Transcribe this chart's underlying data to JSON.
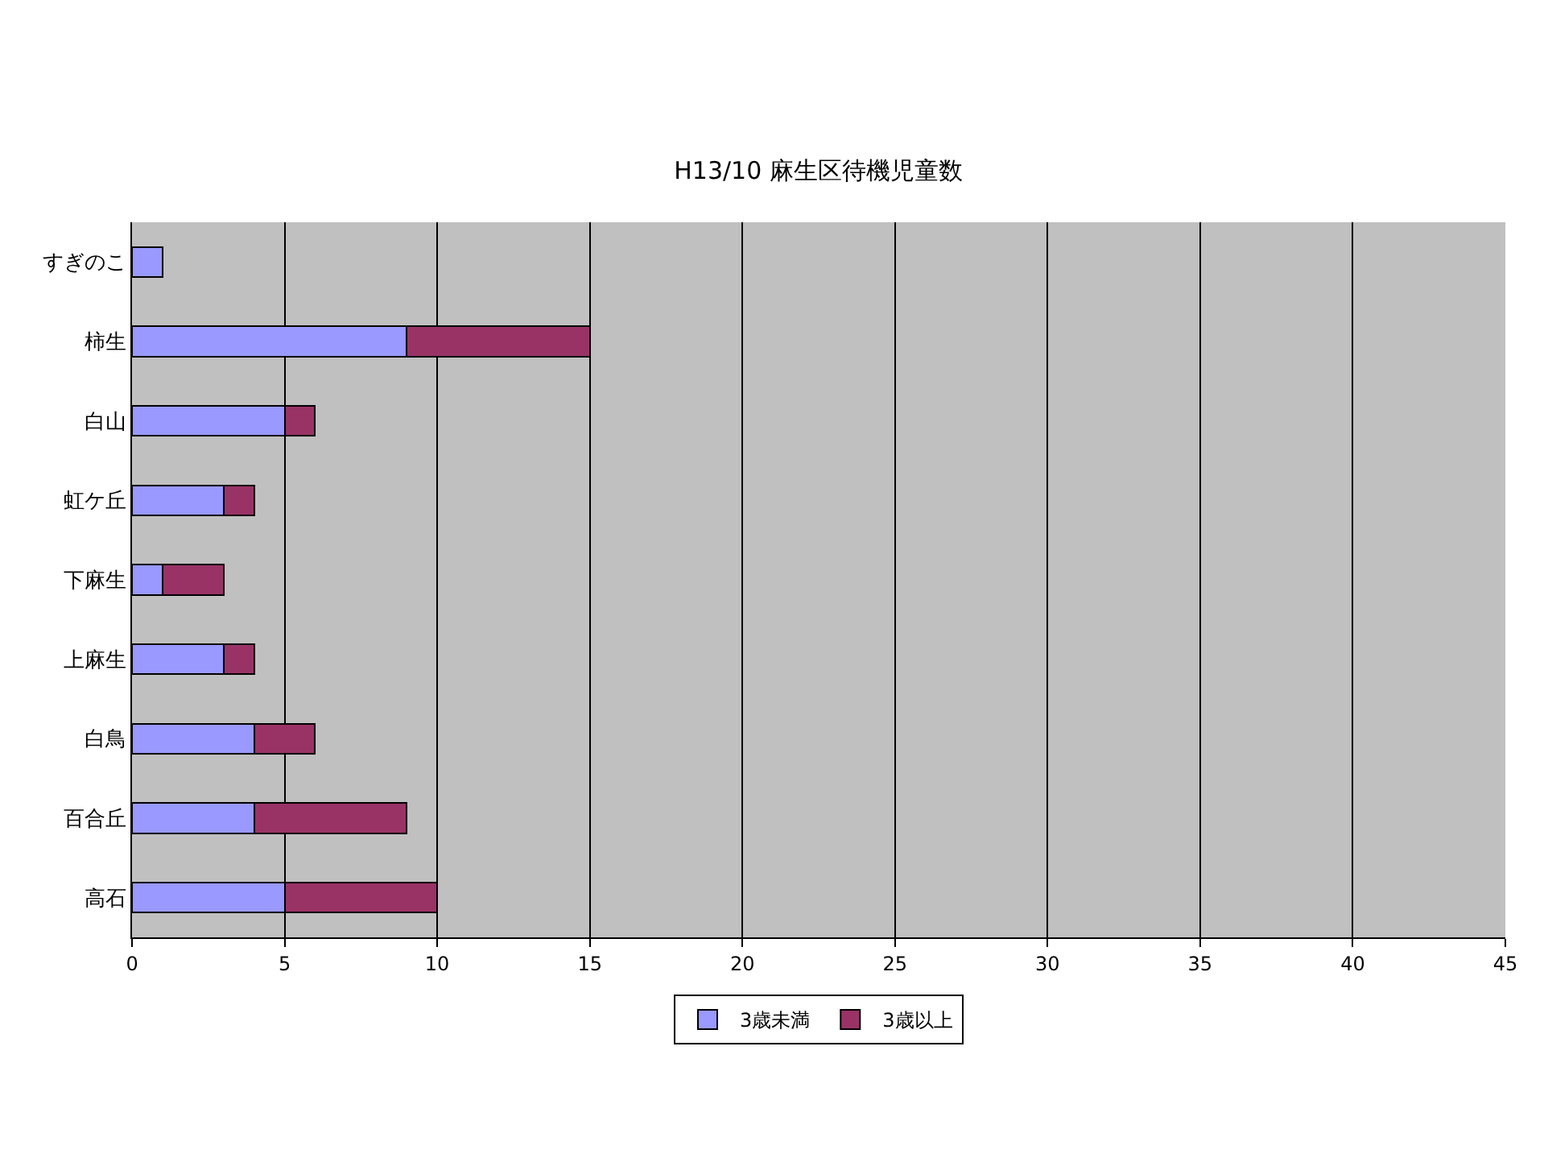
{
  "chart_data": {
    "type": "bar",
    "orientation": "horizontal",
    "stacked": true,
    "title": "H13/10 麻生区待機児童数",
    "categories": [
      "すぎのこ",
      "柿生",
      "白山",
      "虹ケ丘",
      "下麻生",
      "上麻生",
      "白鳥",
      "百合丘",
      "高石"
    ],
    "series": [
      {
        "name": "3歳未満",
        "color": "#9999ff",
        "values": [
          1,
          9,
          5,
          3,
          1,
          3,
          4,
          4,
          5
        ]
      },
      {
        "name": "3歳以上",
        "color": "#993366",
        "values": [
          null,
          6,
          1,
          1,
          2,
          1,
          2,
          5,
          5
        ]
      }
    ],
    "xlim": [
      0,
      45
    ],
    "xticks": [
      0,
      5,
      10,
      15,
      20,
      25,
      30,
      35,
      40,
      45
    ],
    "grid": "x",
    "legend": "bottom"
  }
}
